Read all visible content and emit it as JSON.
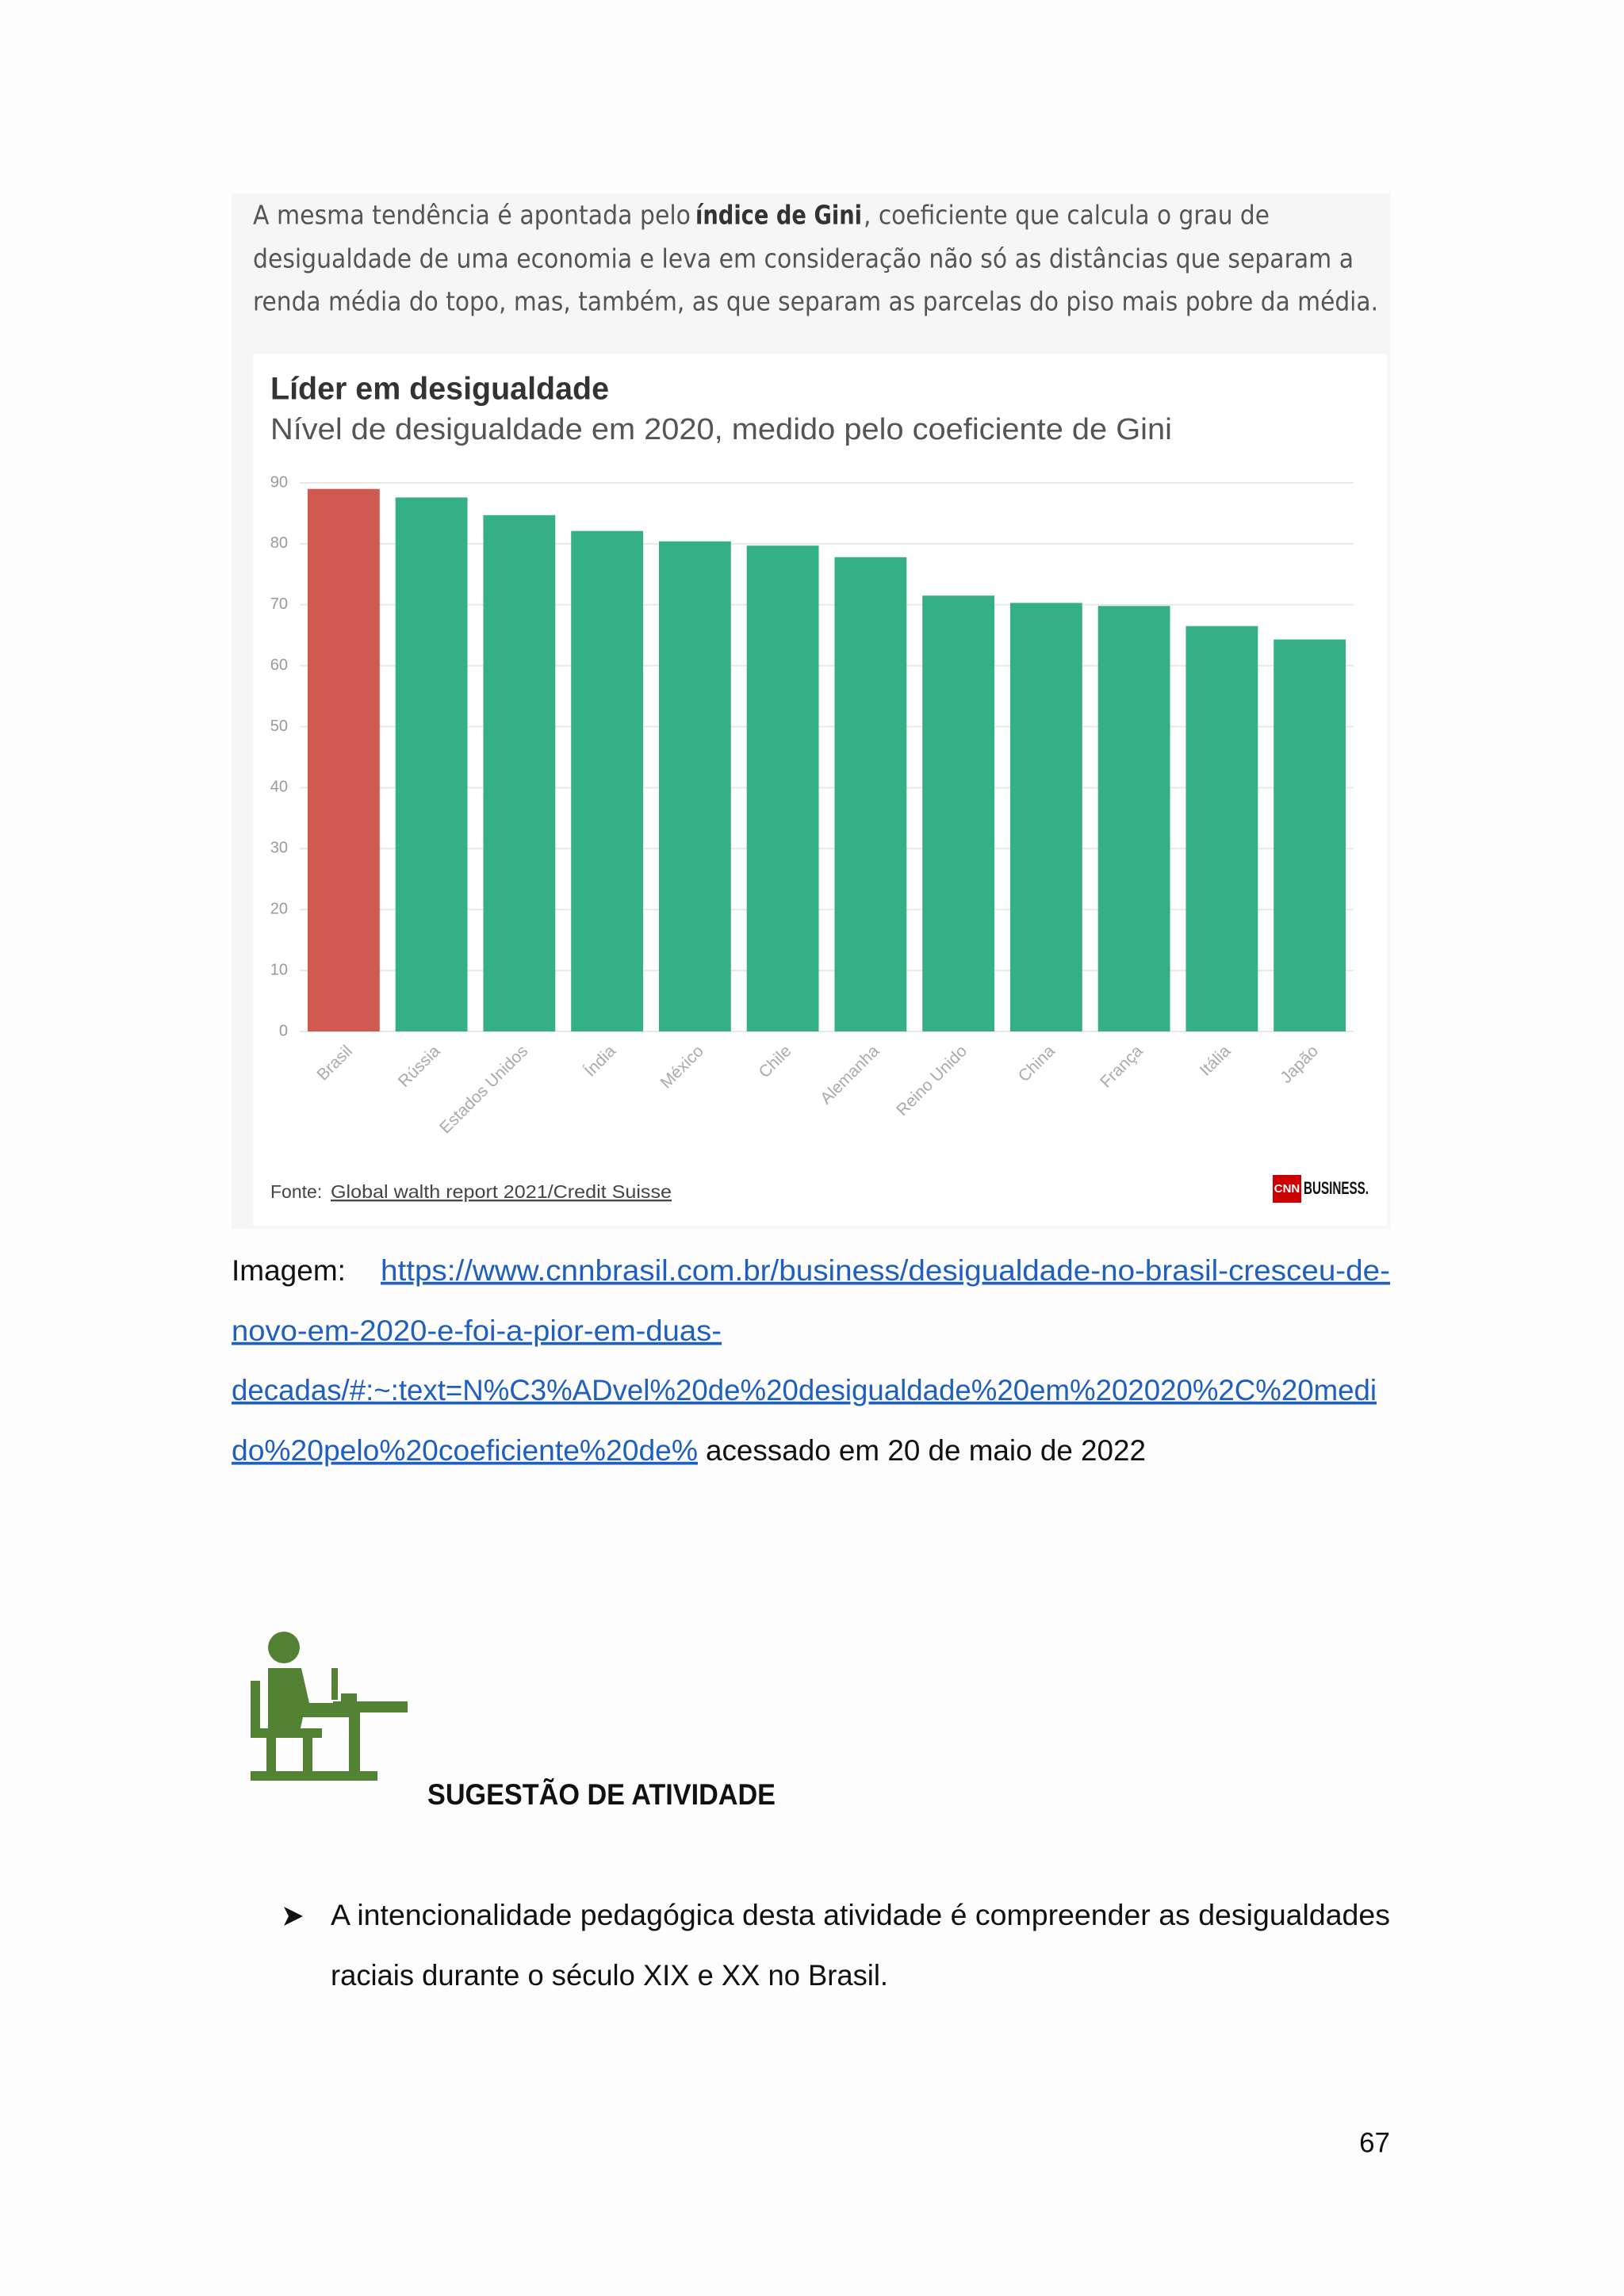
{
  "intro": {
    "line1": {
      "before": "A mesma tendência é apontada pelo ",
      "bold": "índice de Gini",
      "after": ", coeficiente que calcula o grau de"
    },
    "line2": "desigualdade de uma economia e leva em consideração não só as distâncias que separam a",
    "line3": "renda média do topo, mas, também, as que separam as parcelas do piso mais pobre da média."
  },
  "chart_data": {
    "type": "bar",
    "title": "Líder em desigualdade",
    "subtitle": "Nível de desigualdade em 2020, medido pelo coeficiente de Gini",
    "categories": [
      "Brasil",
      "Rússia",
      "Estados Unidos",
      "Índia",
      "México",
      "Chile",
      "Alemanha",
      "Reino Unido",
      "China",
      "França",
      "Itália",
      "Japão"
    ],
    "values": [
      89,
      87.6,
      84.7,
      82.1,
      80.4,
      79.7,
      77.8,
      71.5,
      70.3,
      69.8,
      66.5,
      64.3
    ],
    "colors": [
      "#d05a4f",
      "#35b086",
      "#35b086",
      "#35b086",
      "#35b086",
      "#35b086",
      "#35b086",
      "#35b086",
      "#35b086",
      "#35b086",
      "#35b086",
      "#35b086"
    ],
    "ylim": [
      0,
      90
    ],
    "yticks": [
      0,
      10,
      20,
      30,
      40,
      50,
      60,
      70,
      80,
      90
    ],
    "grid": true,
    "source_label": "Fonte:",
    "source": "Global walth report 2021/Credit Suisse",
    "logo": {
      "mark": "CNN",
      "text": "BUSINESS."
    }
  },
  "caption": {
    "label": "Imagem:",
    "link_lines": [
      "https://www.cnnbrasil.com.br/business/desigualdade-no-brasil-cresceu-de-",
      "novo-em-2020-e-foi-a-pior-em-duas-",
      "decadas/#:~:text=N%C3%ADvel%20de%20desigualdade%20em%202020%2C%20medi",
      "do%20pelo%20coeficiente%20de%"
    ],
    "suffix": "acessado em 20 de maio de 2022"
  },
  "activity": {
    "title": "SUGESTÃO DE ATIVIDADE",
    "bullet_lines": [
      "A intencionalidade pedagógica desta atividade é compreender as desigualdades",
      "raciais durante o século XIX e XX no Brasil."
    ]
  },
  "page_number": "67"
}
